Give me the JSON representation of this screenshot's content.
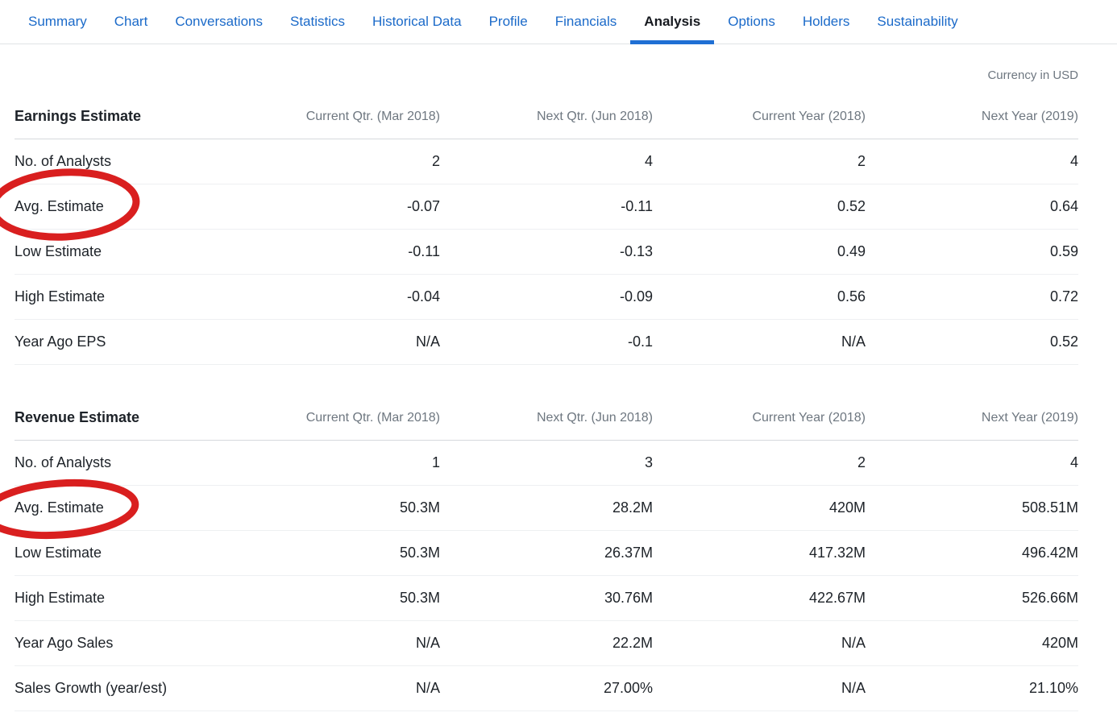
{
  "page": {
    "currency_note": "Currency in USD"
  },
  "nav": {
    "tabs": [
      {
        "label": "Summary",
        "active": false
      },
      {
        "label": "Chart",
        "active": false
      },
      {
        "label": "Conversations",
        "active": false
      },
      {
        "label": "Statistics",
        "active": false
      },
      {
        "label": "Historical Data",
        "active": false
      },
      {
        "label": "Profile",
        "active": false
      },
      {
        "label": "Financials",
        "active": false
      },
      {
        "label": "Analysis",
        "active": true
      },
      {
        "label": "Options",
        "active": false
      },
      {
        "label": "Holders",
        "active": false
      },
      {
        "label": "Sustainability",
        "active": false
      }
    ]
  },
  "tables": [
    {
      "title": "Earnings Estimate",
      "columns": [
        "Current Qtr. (Mar 2018)",
        "Next Qtr. (Jun 2018)",
        "Current Year (2018)",
        "Next Year (2019)"
      ],
      "rows": [
        {
          "label": "No. of Analysts",
          "values": [
            "2",
            "4",
            "2",
            "4"
          ],
          "circled": false
        },
        {
          "label": "Avg. Estimate",
          "values": [
            "-0.07",
            "-0.11",
            "0.52",
            "0.64"
          ],
          "circled": true
        },
        {
          "label": "Low Estimate",
          "values": [
            "-0.11",
            "-0.13",
            "0.49",
            "0.59"
          ],
          "circled": false
        },
        {
          "label": "High Estimate",
          "values": [
            "-0.04",
            "-0.09",
            "0.56",
            "0.72"
          ],
          "circled": false
        },
        {
          "label": "Year Ago EPS",
          "values": [
            "N/A",
            "-0.1",
            "N/A",
            "0.52"
          ],
          "circled": false
        }
      ]
    },
    {
      "title": "Revenue Estimate",
      "columns": [
        "Current Qtr. (Mar 2018)",
        "Next Qtr. (Jun 2018)",
        "Current Year (2018)",
        "Next Year (2019)"
      ],
      "rows": [
        {
          "label": "No. of Analysts",
          "values": [
            "1",
            "3",
            "2",
            "4"
          ],
          "circled": false
        },
        {
          "label": "Avg. Estimate",
          "values": [
            "50.3M",
            "28.2M",
            "420M",
            "508.51M"
          ],
          "circled": true
        },
        {
          "label": "Low Estimate",
          "values": [
            "50.3M",
            "26.37M",
            "417.32M",
            "496.42M"
          ],
          "circled": false
        },
        {
          "label": "High Estimate",
          "values": [
            "50.3M",
            "30.76M",
            "422.67M",
            "526.66M"
          ],
          "circled": false
        },
        {
          "label": "Year Ago Sales",
          "values": [
            "N/A",
            "22.2M",
            "N/A",
            "420M"
          ],
          "circled": false
        },
        {
          "label": "Sales Growth (year/est)",
          "values": [
            "N/A",
            "27.00%",
            "N/A",
            "21.10%"
          ],
          "circled": false
        }
      ]
    }
  ],
  "annotations": {
    "circle_color": "#d91f1f",
    "circled_labels": [
      "Avg. Estimate",
      "Avg. Estimate"
    ]
  },
  "colors": {
    "tab_link": "#1b6ac9",
    "active_tab_text": "#16191f",
    "active_tab_underline": "#1f6fd4",
    "muted_text": "#6e7780",
    "body_text": "#1d2228",
    "annotation_red": "#d91f1f"
  }
}
